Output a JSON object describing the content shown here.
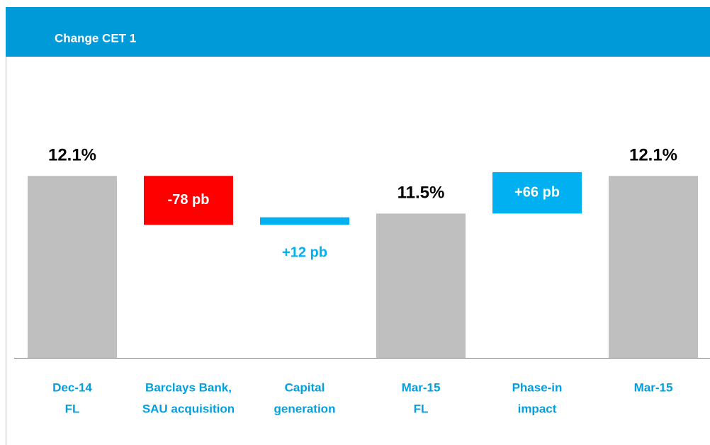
{
  "chart_data": {
    "type": "waterfall",
    "title": "Change CET 1",
    "categories": [
      [
        "Dec-14",
        "FL"
      ],
      [
        "Barclays Bank,",
        "SAU acquisition"
      ],
      [
        "Capital",
        "generation"
      ],
      [
        "Mar-15",
        "FL"
      ],
      [
        "Phase-in",
        "impact"
      ],
      [
        "Mar-15"
      ]
    ],
    "values": [
      12.1,
      -0.78,
      0.12,
      11.5,
      0.66,
      12.1
    ],
    "value_labels": [
      "12.1%",
      "-78 pb",
      "+12 pb",
      "11.5%",
      "+66 pb",
      "12.1%"
    ],
    "totals": [
      true,
      false,
      false,
      true,
      false,
      true
    ],
    "colors": [
      "#bfbfbf",
      "#ff0000",
      "#00b0f0",
      "#bfbfbf",
      "#00b0f0",
      "#bfbfbf"
    ],
    "ylim": [
      9.2,
      14
    ]
  }
}
